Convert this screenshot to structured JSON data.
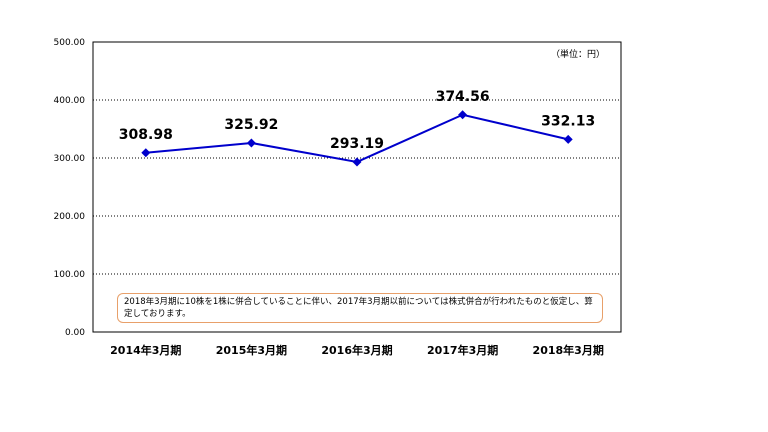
{
  "chart_data": {
    "type": "line",
    "categories": [
      "2014年3月期",
      "2015年3月期",
      "2016年3月期",
      "2017年3月期",
      "2018年3月期"
    ],
    "series": [
      {
        "values": [
          308.98,
          325.92,
          293.19,
          374.56,
          332.13
        ]
      }
    ],
    "data_labels": [
      "308.98",
      "325.92",
      "293.19",
      "374.56",
      "332.13"
    ],
    "y_ticks": [
      "0.00",
      "100.00",
      "200.00",
      "300.00",
      "400.00",
      "500.00"
    ],
    "ylim": [
      0,
      500
    ],
    "unit_label": "（単位：円）",
    "annotation": "2018年3月期に10株を1株に併合していることに伴い、2017年3月期以前については株式併合が行われたものと仮定し、算定しております。",
    "grid": true,
    "line_color": "#0000cc",
    "marker": "diamond"
  }
}
